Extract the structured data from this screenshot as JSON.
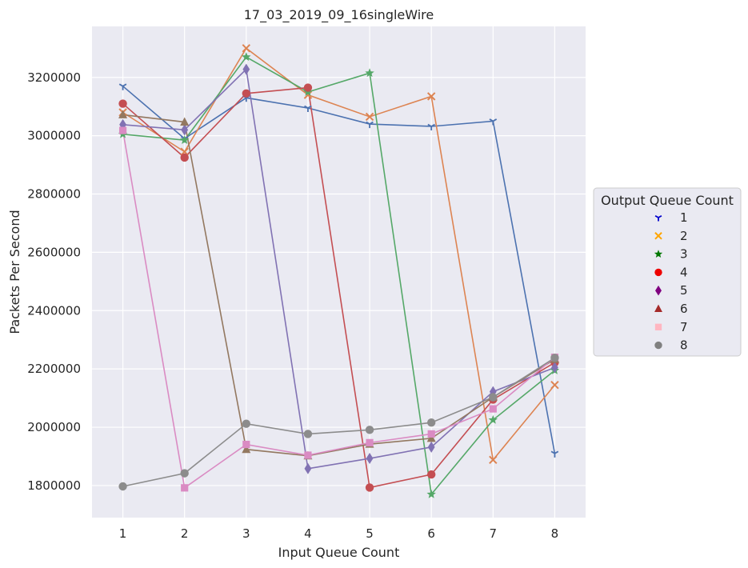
{
  "chart_data": {
    "type": "line",
    "title": "17_03_2019_09_16singleWire",
    "xlabel": "Input Queue Count",
    "ylabel": "Packets Per Second",
    "x": [
      1,
      2,
      3,
      4,
      5,
      6,
      7,
      8
    ],
    "xlim": [
      0.5,
      8.5
    ],
    "ylim": [
      1690000,
      3375000
    ],
    "yticks": [
      1800000,
      2000000,
      2200000,
      2400000,
      2600000,
      2800000,
      3000000,
      3200000
    ],
    "grid": true,
    "background": "#eaeaf2",
    "legend": {
      "title": "Output Queue Count",
      "placement": "center-right-outside"
    },
    "series": [
      {
        "name": "1",
        "marker": "tri-down",
        "color": "#4c72b0",
        "legend_color": "#0000cc",
        "values": [
          3170000,
          2990000,
          3130000,
          3095000,
          3040000,
          3032000,
          3050000,
          1910000
        ]
      },
      {
        "name": "2",
        "marker": "x",
        "color": "#dd8452",
        "legend_color": "#ffa500",
        "values": [
          3080000,
          2945000,
          3300000,
          3140000,
          3065000,
          3135000,
          1888000,
          2145000
        ]
      },
      {
        "name": "3",
        "marker": "star",
        "color": "#55a868",
        "legend_color": "#007700",
        "values": [
          3005000,
          2985000,
          3270000,
          3150000,
          3215000,
          1770000,
          2025000,
          2195000
        ]
      },
      {
        "name": "4",
        "marker": "circle",
        "color": "#c44e52",
        "legend_color": "#ee0000",
        "values": [
          3110000,
          2925000,
          3145000,
          3165000,
          1793000,
          1838000,
          2095000,
          2222000
        ]
      },
      {
        "name": "5",
        "marker": "diamond",
        "color": "#8172b3",
        "legend_color": "#800080",
        "values": [
          3038000,
          3020000,
          3228000,
          1858000,
          1893000,
          1932000,
          2122000,
          2205000
        ]
      },
      {
        "name": "6",
        "marker": "triangle",
        "color": "#937860",
        "legend_color": "#a52a2a",
        "values": [
          3072000,
          3047000,
          1924000,
          1902000,
          1942000,
          1962000,
          2103000,
          2233000
        ]
      },
      {
        "name": "7",
        "marker": "square",
        "color": "#da8bc3",
        "legend_color": "#ffb6c1",
        "values": [
          3018000,
          1792000,
          1941000,
          1904000,
          1947000,
          1977000,
          2063000,
          2240000
        ]
      },
      {
        "name": "8",
        "marker": "circle",
        "color": "#8c8c8c",
        "legend_color": "#808080",
        "values": [
          1797000,
          1842000,
          2012000,
          1977000,
          1991000,
          2016000,
          2103000,
          2238000
        ]
      }
    ]
  }
}
